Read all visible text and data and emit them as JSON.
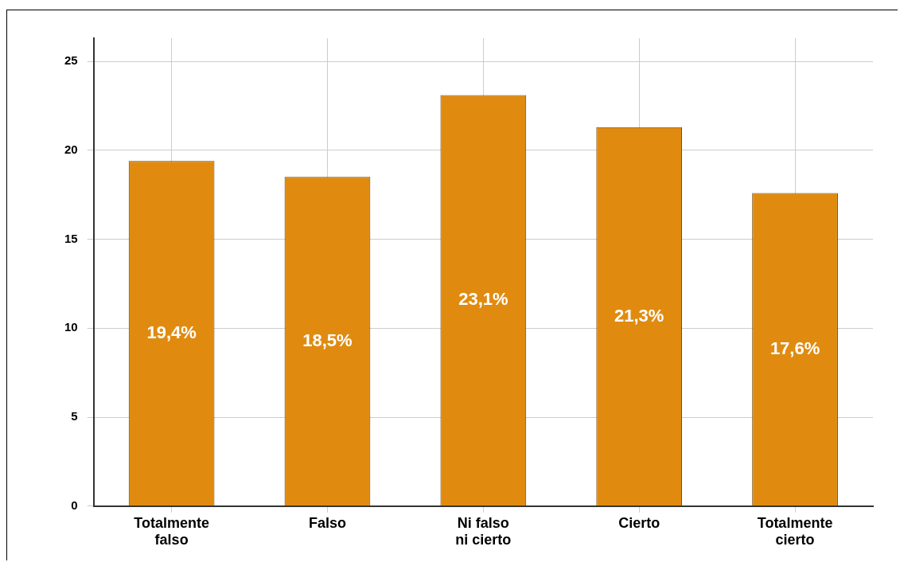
{
  "chart_data": {
    "type": "bar",
    "categories": [
      "Totalmente falso",
      "Falso",
      "Ni falso ni cierto",
      "Cierto",
      "Totalmente cierto"
    ],
    "values": [
      19.4,
      18.5,
      23.1,
      21.3,
      17.6
    ],
    "value_labels": [
      "19,4%",
      "18,5%",
      "23,1%",
      "21,3%",
      "17,6%"
    ],
    "color": "#e08b10",
    "ylim": [
      0,
      26.3
    ],
    "yticks": [
      0,
      5,
      10,
      15,
      20,
      25
    ],
    "grid": true
  }
}
